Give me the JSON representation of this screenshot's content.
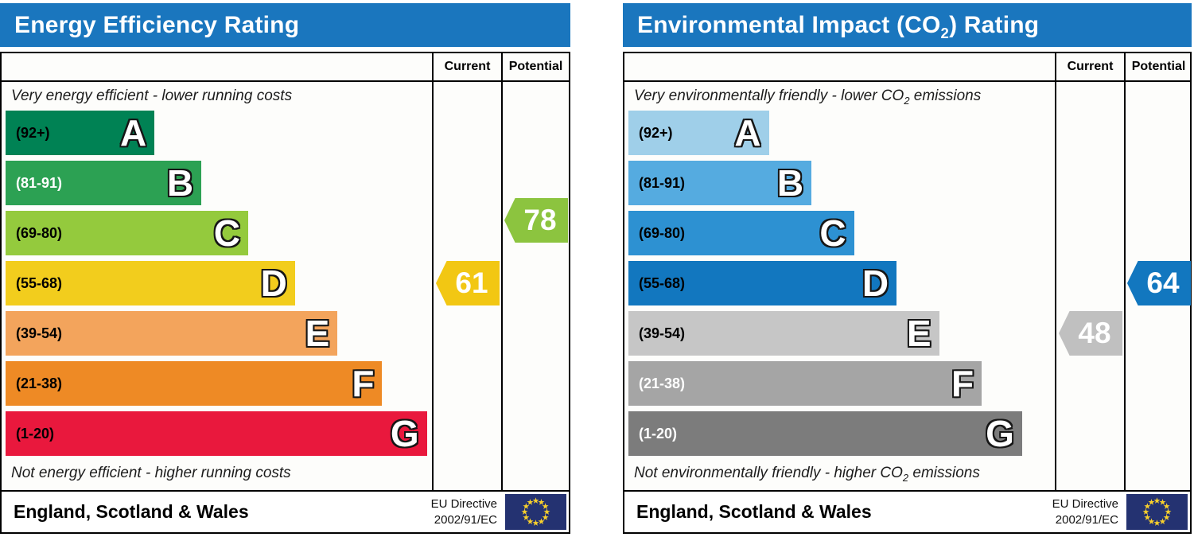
{
  "page": {
    "background": "#ffffff"
  },
  "eu_flag": {
    "background": "#243271",
    "star_color": "#f8d02c",
    "star_count": 12
  },
  "chart_data": [
    {
      "type": "bar",
      "title_parts": {
        "pre": "Energy Efficiency Rating",
        "sub": "",
        "post": ""
      },
      "header_color": "#1a76be",
      "columns": {
        "current": "Current",
        "potential": "Potential"
      },
      "note_top": {
        "pre": "Very energy efficient - lower running costs",
        "sub": "",
        "post": ""
      },
      "note_bottom": {
        "pre": "Not energy efficient - higher running costs",
        "sub": "",
        "post": ""
      },
      "bands": [
        {
          "letter": "A",
          "range": "(92+)",
          "min": 92,
          "max": 100,
          "color": "#008254",
          "text_color": "#000000",
          "width_pct": 35
        },
        {
          "letter": "B",
          "range": "(81-91)",
          "min": 81,
          "max": 91,
          "color": "#2ca153",
          "text_color": "#ffffff",
          "width_pct": 46
        },
        {
          "letter": "C",
          "range": "(69-80)",
          "min": 69,
          "max": 80,
          "color": "#94ca3d",
          "text_color": "#000000",
          "width_pct": 57
        },
        {
          "letter": "D",
          "range": "(55-68)",
          "min": 55,
          "max": 68,
          "color": "#f2cd1d",
          "text_color": "#000000",
          "width_pct": 68
        },
        {
          "letter": "E",
          "range": "(39-54)",
          "min": 39,
          "max": 54,
          "color": "#f3a45c",
          "text_color": "#000000",
          "width_pct": 78
        },
        {
          "letter": "F",
          "range": "(21-38)",
          "min": 21,
          "max": 38,
          "color": "#ee8a25",
          "text_color": "#000000",
          "width_pct": 88.5
        },
        {
          "letter": "G",
          "range": "(1-20)",
          "min": 1,
          "max": 20,
          "color": "#e9183d",
          "text_color": "#000000",
          "width_pct": 99
        }
      ],
      "current": {
        "value": 61,
        "band_letter": "D",
        "band_index": 3,
        "color": "#f2c713"
      },
      "potential": {
        "value": 78,
        "band_letter": "C",
        "band_index": 2,
        "color": "#8cc43f"
      },
      "footer": {
        "region": "England, Scotland & Wales",
        "directive_line1": "EU Directive",
        "directive_line2": "2002/91/EC"
      }
    },
    {
      "type": "bar",
      "title_parts": {
        "pre": "Environmental Impact (CO",
        "sub": "2",
        "post": ") Rating"
      },
      "header_color": "#1a76be",
      "columns": {
        "current": "Current",
        "potential": "Potential"
      },
      "note_top": {
        "pre": "Very environmentally friendly - lower CO",
        "sub": "2",
        "post": " emissions"
      },
      "note_bottom": {
        "pre": "Not environmentally friendly - higher CO",
        "sub": "2",
        "post": " emissions"
      },
      "bands": [
        {
          "letter": "A",
          "range": "(92+)",
          "min": 92,
          "max": 100,
          "color": "#9fcfe9",
          "text_color": "#000000",
          "width_pct": 33
        },
        {
          "letter": "B",
          "range": "(81-91)",
          "min": 81,
          "max": 91,
          "color": "#55abe0",
          "text_color": "#000000",
          "width_pct": 43
        },
        {
          "letter": "C",
          "range": "(69-80)",
          "min": 69,
          "max": 80,
          "color": "#2d91d2",
          "text_color": "#000000",
          "width_pct": 53
        },
        {
          "letter": "D",
          "range": "(55-68)",
          "min": 55,
          "max": 68,
          "color": "#1277bf",
          "text_color": "#000000",
          "width_pct": 63
        },
        {
          "letter": "E",
          "range": "(39-54)",
          "min": 39,
          "max": 54,
          "color": "#c6c6c6",
          "text_color": "#000000",
          "width_pct": 73
        },
        {
          "letter": "F",
          "range": "(21-38)",
          "min": 21,
          "max": 38,
          "color": "#a5a5a5",
          "text_color": "#ffffff",
          "width_pct": 83
        },
        {
          "letter": "G",
          "range": "(1-20)",
          "min": 1,
          "max": 20,
          "color": "#7c7c7c",
          "text_color": "#ffffff",
          "width_pct": 92.5
        }
      ],
      "current": {
        "value": 48,
        "band_letter": "E",
        "band_index": 4,
        "color": "#c0c0c0"
      },
      "potential": {
        "value": 64,
        "band_letter": "D",
        "band_index": 3,
        "color": "#1277bf"
      },
      "footer": {
        "region": "England, Scotland & Wales",
        "directive_line1": "EU Directive",
        "directive_line2": "2002/91/EC"
      }
    }
  ]
}
